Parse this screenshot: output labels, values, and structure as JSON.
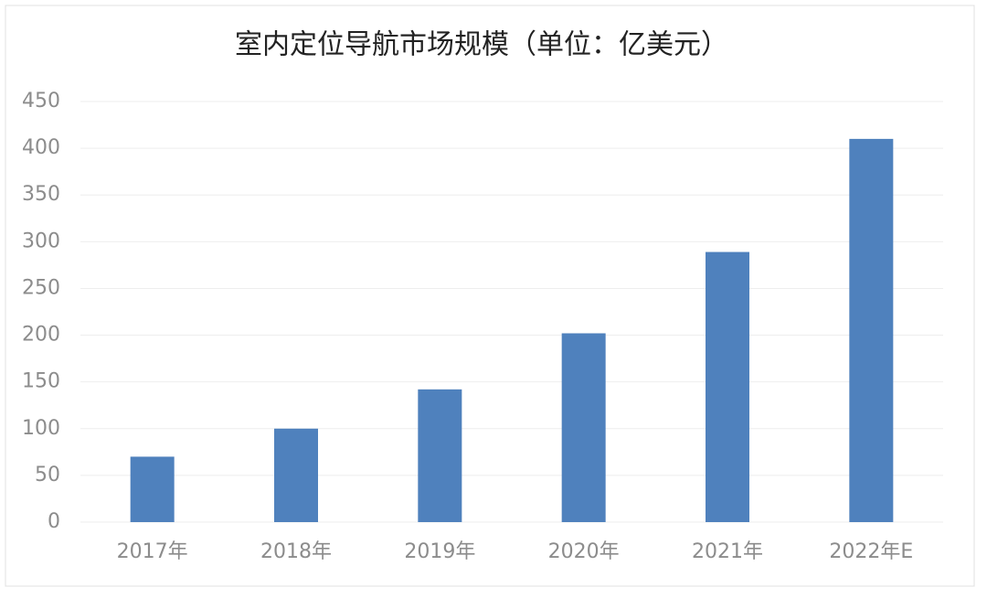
{
  "chart_data": {
    "type": "bar",
    "title": "室内定位导航市场规模（单位：亿美元）",
    "categories": [
      "2017年",
      "2018年",
      "2019年",
      "2020年",
      "2021年",
      "2022年E"
    ],
    "values": [
      70,
      100,
      142,
      202,
      289,
      410
    ],
    "color": "#4f81bd",
    "ylim": [
      0,
      450
    ],
    "yticks": [
      0,
      50,
      100,
      150,
      200,
      250,
      300,
      350,
      400,
      450
    ],
    "grid": true
  }
}
